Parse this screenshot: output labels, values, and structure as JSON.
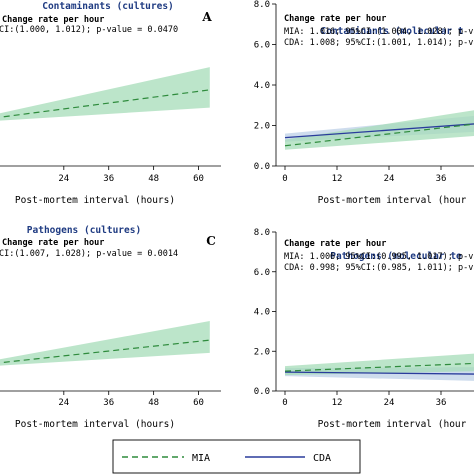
{
  "legend": {
    "mia_label": "MIA",
    "cda_label": "CDA"
  },
  "colors": {
    "mia": "#2e8b3c",
    "mia_band": "#a6dcb8",
    "cda": "#2a3c9c",
    "cda_band": "#b9cde6",
    "title": "#1f3b82"
  },
  "chart_data": [
    {
      "type": "line",
      "panel_letter": "A",
      "title": "Contaminants (cultures)",
      "xlabel": "Post-mortem interval (hours)",
      "xticks": [
        "24",
        "36",
        "48",
        "60"
      ],
      "annotation": [
        "Change rate per hour",
        "CI:(1.000, 1.012); p-value = 0.0470"
      ],
      "xlim": [
        0,
        66
      ],
      "ylim": [
        0,
        10
      ],
      "series": [
        {
          "name": "MIA",
          "x": [
            0,
            63
          ],
          "values": [
            2.8,
            4.7
          ],
          "lower": [
            2.7,
            3.6
          ],
          "upper": [
            2.9,
            6.1
          ]
        }
      ]
    },
    {
      "type": "line",
      "title": "Contaminants (molecular t",
      "xlabel": "Post-mortem interval (hour",
      "xticks": [
        "0",
        "12",
        "24",
        "36"
      ],
      "yticks": [
        "0.0",
        "2.0",
        "4.0",
        "6.0",
        "8.0"
      ],
      "annotation": [
        "Change rate per hour",
        "MIA: 1.016; 95%CI:(1.004, 1.028); p-valu",
        "CDA: 1.008; 95%CI:(1.001, 1.014); p-valu"
      ],
      "xlim": [
        0,
        45
      ],
      "ylim": [
        0,
        8
      ],
      "series": [
        {
          "name": "MIA",
          "x": [
            0,
            45
          ],
          "values": [
            1.0,
            2.1
          ],
          "lower": [
            0.8,
            1.5
          ],
          "upper": [
            1.3,
            2.8
          ]
        },
        {
          "name": "CDA",
          "x": [
            0,
            45
          ],
          "values": [
            1.4,
            2.1
          ],
          "lower": [
            1.2,
            1.7
          ],
          "upper": [
            1.6,
            2.5
          ]
        }
      ]
    },
    {
      "type": "line",
      "panel_letter": "C",
      "title": "Pathogens (cultures)",
      "xlabel": "Post-mortem interval (hours)",
      "xticks": [
        "24",
        "36",
        "48",
        "60"
      ],
      "annotation": [
        "Change rate per hour",
        "CI:(1.007, 1.028); p-value = 0.0014"
      ],
      "xlim": [
        0,
        66
      ],
      "ylim": [
        0,
        10
      ],
      "series": [
        {
          "name": "MIA",
          "x": [
            0,
            63
          ],
          "values": [
            1.6,
            3.2
          ],
          "lower": [
            1.5,
            2.4
          ],
          "upper": [
            1.7,
            4.4
          ]
        }
      ]
    },
    {
      "type": "line",
      "title": "Pathogens (molecular te",
      "xlabel": "Post-mortem interval (hour",
      "xticks": [
        "0",
        "12",
        "24",
        "36"
      ],
      "yticks": [
        "0.0",
        "2.0",
        "4.0",
        "6.0",
        "8.0"
      ],
      "annotation": [
        "Change rate per hour",
        "MIA: 1.006; 95%CI:(0.995, 1.017); p-valu",
        "CDA: 0.998; 95%CI:(0.985, 1.011); p-valu"
      ],
      "xlim": [
        0,
        45
      ],
      "ylim": [
        0,
        8
      ],
      "series": [
        {
          "name": "MIA",
          "x": [
            0,
            45
          ],
          "values": [
            1.0,
            1.4
          ],
          "lower": [
            0.8,
            1.0
          ],
          "upper": [
            1.25,
            1.9
          ]
        },
        {
          "name": "CDA",
          "x": [
            0,
            45
          ],
          "values": [
            0.95,
            0.85
          ],
          "lower": [
            0.75,
            0.5
          ],
          "upper": [
            1.15,
            1.2
          ]
        }
      ]
    }
  ]
}
